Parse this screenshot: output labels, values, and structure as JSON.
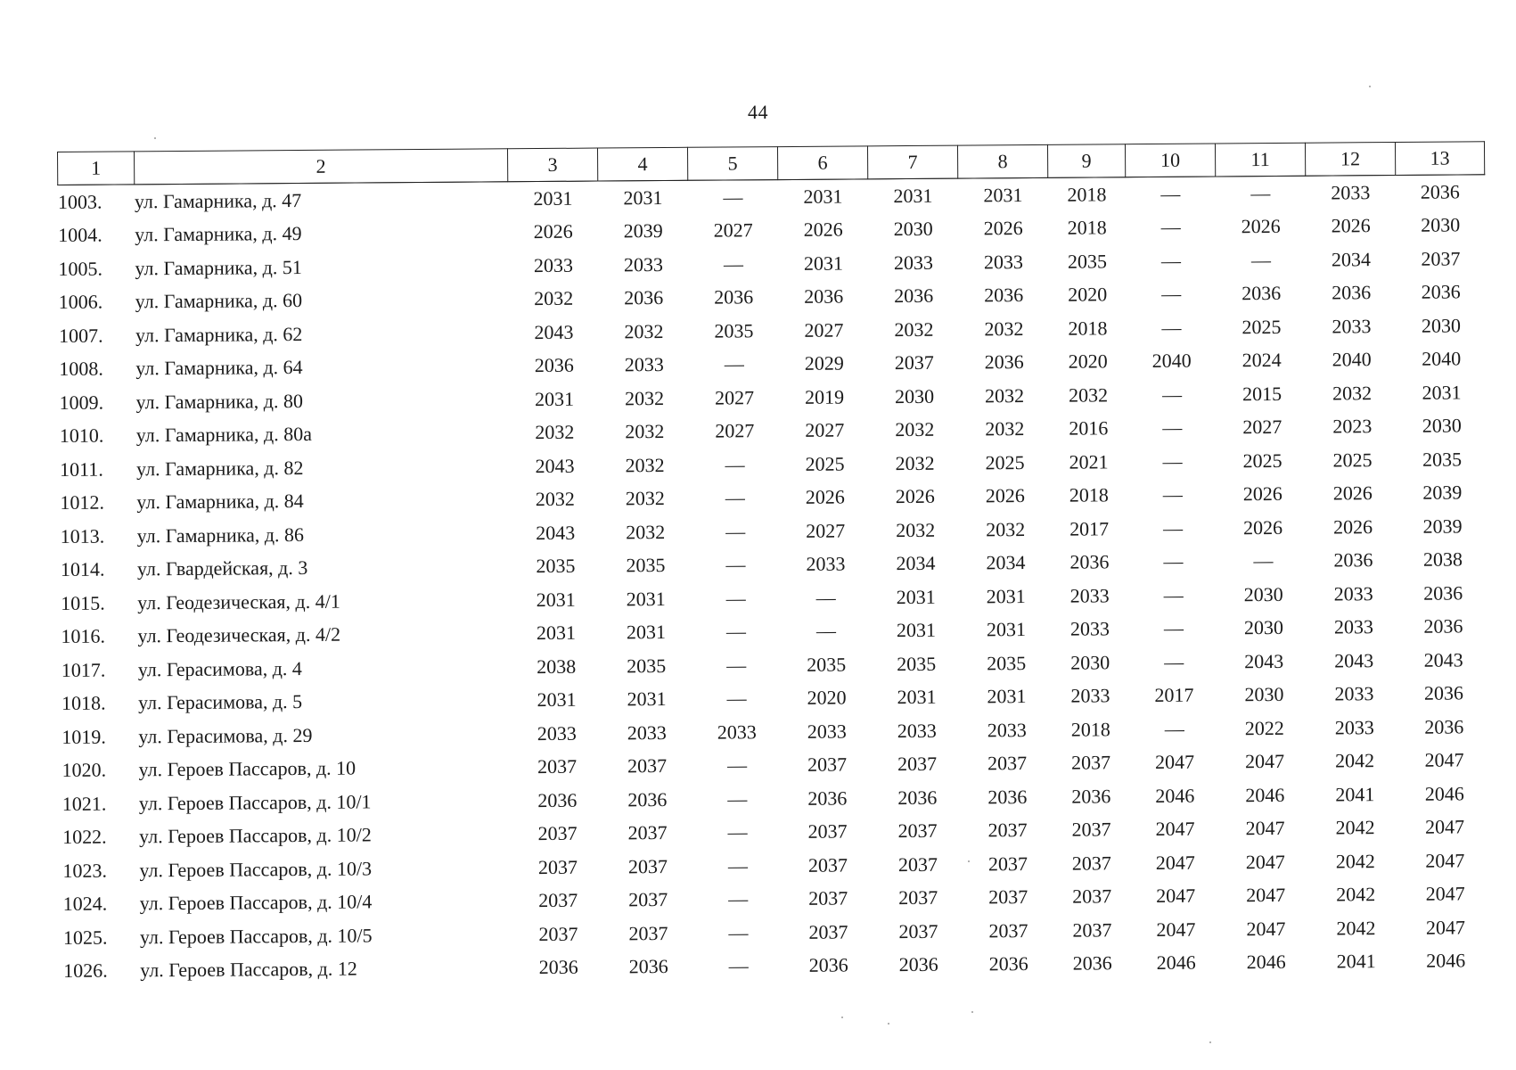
{
  "page_number": "44",
  "header": [
    "1",
    "2",
    "3",
    "4",
    "5",
    "6",
    "7",
    "8",
    "9",
    "10",
    "11",
    "12",
    "13"
  ],
  "rows": [
    {
      "num": "1003.",
      "address": "ул. Гамарника, д. 47",
      "values": [
        "2031",
        "2031",
        "—",
        "2031",
        "2031",
        "2031",
        "2018",
        "—",
        "—",
        "2033",
        "2036"
      ]
    },
    {
      "num": "1004.",
      "address": "ул. Гамарника, д. 49",
      "values": [
        "2026",
        "2039",
        "2027",
        "2026",
        "2030",
        "2026",
        "2018",
        "—",
        "2026",
        "2026",
        "2030"
      ]
    },
    {
      "num": "1005.",
      "address": "ул. Гамарника, д. 51",
      "values": [
        "2033",
        "2033",
        "—",
        "2031",
        "2033",
        "2033",
        "2035",
        "—",
        "—",
        "2034",
        "2037"
      ]
    },
    {
      "num": "1006.",
      "address": "ул. Гамарника, д. 60",
      "values": [
        "2032",
        "2036",
        "2036",
        "2036",
        "2036",
        "2036",
        "2020",
        "—",
        "2036",
        "2036",
        "2036"
      ]
    },
    {
      "num": "1007.",
      "address": "ул. Гамарника, д. 62",
      "values": [
        "2043",
        "2032",
        "2035",
        "2027",
        "2032",
        "2032",
        "2018",
        "—",
        "2025",
        "2033",
        "2030"
      ]
    },
    {
      "num": "1008.",
      "address": "ул. Гамарника, д. 64",
      "values": [
        "2036",
        "2033",
        "—",
        "2029",
        "2037",
        "2036",
        "2020",
        "2040",
        "2024",
        "2040",
        "2040"
      ]
    },
    {
      "num": "1009.",
      "address": "ул. Гамарника, д. 80",
      "values": [
        "2031",
        "2032",
        "2027",
        "2019",
        "2030",
        "2032",
        "2032",
        "—",
        "2015",
        "2032",
        "2031"
      ]
    },
    {
      "num": "1010.",
      "address": "ул. Гамарника, д. 80а",
      "values": [
        "2032",
        "2032",
        "2027",
        "2027",
        "2032",
        "2032",
        "2016",
        "—",
        "2027",
        "2023",
        "2030"
      ]
    },
    {
      "num": "1011.",
      "address": "ул. Гамарника, д. 82",
      "values": [
        "2043",
        "2032",
        "—",
        "2025",
        "2032",
        "2025",
        "2021",
        "—",
        "2025",
        "2025",
        "2035"
      ]
    },
    {
      "num": "1012.",
      "address": "ул. Гамарника, д. 84",
      "values": [
        "2032",
        "2032",
        "—",
        "2026",
        "2026",
        "2026",
        "2018",
        "—",
        "2026",
        "2026",
        "2039"
      ]
    },
    {
      "num": "1013.",
      "address": "ул. Гамарника, д. 86",
      "values": [
        "2043",
        "2032",
        "—",
        "2027",
        "2032",
        "2032",
        "2017",
        "—",
        "2026",
        "2026",
        "2039"
      ]
    },
    {
      "num": "1014.",
      "address": "ул. Гвардейская, д. 3",
      "values": [
        "2035",
        "2035",
        "—",
        "2033",
        "2034",
        "2034",
        "2036",
        "—",
        "—",
        "2036",
        "2038"
      ]
    },
    {
      "num": "1015.",
      "address": "ул. Геодезическая, д. 4/1",
      "values": [
        "2031",
        "2031",
        "—",
        "—",
        "2031",
        "2031",
        "2033",
        "—",
        "2030",
        "2033",
        "2036"
      ]
    },
    {
      "num": "1016.",
      "address": "ул. Геодезическая, д. 4/2",
      "values": [
        "2031",
        "2031",
        "—",
        "—",
        "2031",
        "2031",
        "2033",
        "—",
        "2030",
        "2033",
        "2036"
      ]
    },
    {
      "num": "1017.",
      "address": "ул. Герасимова, д. 4",
      "values": [
        "2038",
        "2035",
        "—",
        "2035",
        "2035",
        "2035",
        "2030",
        "—",
        "2043",
        "2043",
        "2043"
      ]
    },
    {
      "num": "1018.",
      "address": "ул. Герасимова, д. 5",
      "values": [
        "2031",
        "2031",
        "—",
        "2020",
        "2031",
        "2031",
        "2033",
        "2017",
        "2030",
        "2033",
        "2036"
      ]
    },
    {
      "num": "1019.",
      "address": "ул. Герасимова, д. 29",
      "values": [
        "2033",
        "2033",
        "2033",
        "2033",
        "2033",
        "2033",
        "2018",
        "—",
        "2022",
        "2033",
        "2036"
      ]
    },
    {
      "num": "1020.",
      "address": "ул. Героев Пассаров, д. 10",
      "values": [
        "2037",
        "2037",
        "—",
        "2037",
        "2037",
        "2037",
        "2037",
        "2047",
        "2047",
        "2042",
        "2047"
      ]
    },
    {
      "num": "1021.",
      "address": "ул. Героев Пассаров, д. 10/1",
      "values": [
        "2036",
        "2036",
        "—",
        "2036",
        "2036",
        "2036",
        "2036",
        "2046",
        "2046",
        "2041",
        "2046"
      ]
    },
    {
      "num": "1022.",
      "address": "ул. Героев Пассаров, д. 10/2",
      "values": [
        "2037",
        "2037",
        "—",
        "2037",
        "2037",
        "2037",
        "2037",
        "2047",
        "2047",
        "2042",
        "2047"
      ]
    },
    {
      "num": "1023.",
      "address": "ул. Героев Пассаров, д. 10/3",
      "values": [
        "2037",
        "2037",
        "—",
        "2037",
        "2037",
        "2037",
        "2037",
        "2047",
        "2047",
        "2042",
        "2047"
      ]
    },
    {
      "num": "1024.",
      "address": "ул. Героев Пассаров, д. 10/4",
      "values": [
        "2037",
        "2037",
        "—",
        "2037",
        "2037",
        "2037",
        "2037",
        "2047",
        "2047",
        "2042",
        "2047"
      ]
    },
    {
      "num": "1025.",
      "address": "ул. Героев Пассаров, д. 10/5",
      "values": [
        "2037",
        "2037",
        "—",
        "2037",
        "2037",
        "2037",
        "2037",
        "2047",
        "2047",
        "2042",
        "2047"
      ]
    },
    {
      "num": "1026.",
      "address": "ул. Героев Пассаров, д. 12",
      "values": [
        "2036",
        "2036",
        "—",
        "2036",
        "2036",
        "2036",
        "2036",
        "2046",
        "2046",
        "2041",
        "2046"
      ]
    }
  ]
}
